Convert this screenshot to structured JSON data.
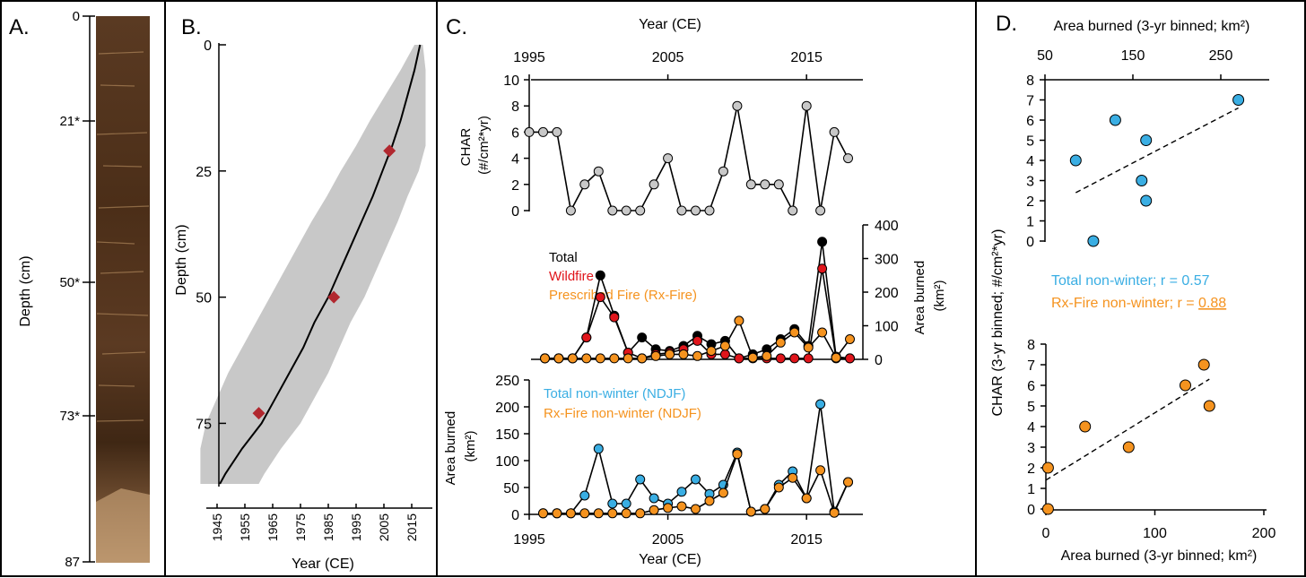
{
  "panels": {
    "a": {
      "label": "A.",
      "ylabel": "Depth (cm)",
      "ticks": [
        "0",
        "21*",
        "50*",
        "73*",
        "87"
      ]
    },
    "b": {
      "label": "B.",
      "ylabel": "Depth (cm)",
      "xlabel": "Year (CE)"
    },
    "c": {
      "label": "C.",
      "top_xlabel": "Year (CE)",
      "bottom_xlabel": "Year (CE)",
      "char_ylabel": [
        "CHAR",
        "(#/cm²*yr)"
      ],
      "area_right_ylabel": [
        "Area burned",
        "(km²)"
      ],
      "area_left_ylabel": [
        "Area burned",
        "(km²)"
      ],
      "legend_mid": [
        "Total",
        "Wildfire",
        "Prescribed Fire (Rx-Fire)"
      ],
      "legend_low": [
        "Total non-winter (NDJF)",
        "Rx-Fire non-winter (NDJF)"
      ]
    },
    "d": {
      "label": "D.",
      "top_xlabel": "Area burned (3-yr binned; km²)",
      "bottom_xlabel": "Area burned (3-yr binned; km²)",
      "ylabel": "CHAR (3-yr binned; #/cm²*yr)",
      "annot_total": "Total non-winter; r = 0.57",
      "annot_rx_prefix": "Rx-Fire non-winter; r = ",
      "annot_rx_value": "0.88"
    }
  },
  "colors": {
    "char": "#c8c8c8",
    "total": "#000000",
    "wildfire": "#e0151b",
    "rx": "#f5931f",
    "nonwinter": "#3aaee3",
    "uncertainty": "#c8c8c8",
    "dates": "#b1282f"
  },
  "chart_data": [
    {
      "id": "age-depth",
      "type": "line",
      "xlabel": "Year (CE)",
      "ylabel": "Depth (cm)",
      "xlim": [
        1940,
        2020
      ],
      "ylim": [
        0,
        87
      ],
      "x_ticks": [
        1945,
        1955,
        1965,
        1975,
        1985,
        1995,
        2005,
        2015
      ],
      "y_ticks": [
        0,
        25,
        50,
        75
      ],
      "y_reversed": true,
      "model": {
        "depth": [
          0,
          5,
          10,
          15,
          20,
          25,
          30,
          35,
          40,
          45,
          50,
          55,
          60,
          65,
          70,
          75,
          80,
          85,
          87
        ],
        "year": [
          2018,
          2016,
          2013.5,
          2011,
          2008,
          2004.5,
          2001,
          1997,
          1993,
          1989,
          1985,
          1980,
          1976,
          1971,
          1966,
          1961,
          1954,
          1948,
          1946
        ],
        "lower": [
          2016,
          2011,
          2005.5,
          2000,
          1995,
          1989.5,
          1984.5,
          1979,
          1974,
          1969,
          1964,
          1959,
          1954,
          1949,
          1945,
          1941,
          1939,
          1939,
          1939
        ],
        "upper": [
          2019,
          2020,
          2020,
          2020,
          2020,
          2017.5,
          2013.5,
          2010,
          2006,
          2002,
          1998,
          1993,
          1989,
          1985,
          1980,
          1975,
          1968,
          1962,
          1960
        ]
      },
      "dated_points": [
        {
          "depth": 21,
          "year": 2007
        },
        {
          "depth": 50,
          "year": 1987
        },
        {
          "depth": 73,
          "year": 1960
        }
      ]
    },
    {
      "id": "char-series",
      "type": "line",
      "ylabel": "CHAR (#/cm²*yr)",
      "xlim": [
        1995,
        2019
      ],
      "ylim": [
        0,
        10
      ],
      "x_ticks": [
        1995,
        2005,
        2015
      ],
      "y_ticks": [
        0,
        2,
        4,
        6,
        8,
        10
      ],
      "x": [
        1995,
        1996,
        1997,
        1998,
        1999,
        2000,
        2001,
        2002,
        2003,
        2004,
        2005,
        2006,
        2007,
        2008,
        2009,
        2010,
        2011,
        2012,
        2013,
        2014,
        2015,
        2016,
        2017,
        2018
      ],
      "values": [
        6,
        6,
        6,
        0,
        2,
        3,
        0,
        0,
        0,
        2,
        4,
        0,
        0,
        0,
        3,
        8,
        2,
        2,
        2,
        0,
        8,
        0,
        6,
        4
      ]
    },
    {
      "id": "area-burned-by-type",
      "type": "line",
      "ylabel": "Area burned (km²)",
      "ylim": [
        0,
        400
      ],
      "y_ticks": [
        0,
        100,
        200,
        300,
        400
      ],
      "x": [
        1996,
        1997,
        1998,
        1999,
        2000,
        2001,
        2002,
        2003,
        2004,
        2005,
        2006,
        2007,
        2008,
        2009,
        2010,
        2011,
        2012,
        2013,
        2014,
        2015,
        2016,
        2017,
        2018
      ],
      "series": [
        {
          "name": "Total",
          "values": [
            3,
            3,
            3,
            65,
            250,
            130,
            20,
            65,
            30,
            25,
            40,
            70,
            45,
            55,
            3,
            15,
            30,
            60,
            90,
            40,
            350,
            8,
            3
          ]
        },
        {
          "name": "Wildfire",
          "values": [
            3,
            3,
            3,
            65,
            185,
            125,
            20,
            3,
            15,
            20,
            30,
            55,
            15,
            15,
            3,
            3,
            3,
            3,
            3,
            3,
            270,
            3,
            3
          ]
        },
        {
          "name": "Prescribed Fire (Rx-Fire)",
          "values": [
            3,
            3,
            3,
            3,
            3,
            3,
            3,
            3,
            10,
            15,
            15,
            10,
            25,
            40,
            115,
            5,
            10,
            50,
            80,
            35,
            80,
            5,
            60
          ]
        }
      ]
    },
    {
      "id": "area-burned-non-winter",
      "type": "line",
      "ylabel": "Area burned (km²)",
      "xlabel": "Year (CE)",
      "xlim": [
        1995,
        2019
      ],
      "ylim": [
        0,
        250
      ],
      "x_ticks": [
        1995,
        2005,
        2015
      ],
      "y_ticks": [
        0,
        50,
        100,
        150,
        200,
        250
      ],
      "x": [
        1996,
        1997,
        1998,
        1999,
        2000,
        2001,
        2002,
        2003,
        2004,
        2005,
        2006,
        2007,
        2008,
        2009,
        2010,
        2011,
        2012,
        2013,
        2014,
        2015,
        2016,
        2017,
        2018
      ],
      "series": [
        {
          "name": "Total non-winter (NDJF)",
          "values": [
            2,
            2,
            2,
            35,
            122,
            20,
            20,
            65,
            30,
            20,
            42,
            65,
            38,
            55,
            115,
            5,
            10,
            55,
            80,
            30,
            205,
            5,
            60
          ]
        },
        {
          "name": "Rx-Fire non-winter (NDJF)",
          "values": [
            2,
            2,
            2,
            2,
            2,
            2,
            2,
            2,
            8,
            12,
            15,
            10,
            25,
            40,
            112,
            5,
            10,
            50,
            68,
            30,
            82,
            3,
            60
          ]
        }
      ]
    },
    {
      "id": "scatter-total",
      "type": "scatter",
      "xlabel": "Area burned (3-yr binned; km²)",
      "ylabel": "CHAR (3-yr binned; #/cm²*yr)",
      "xlim": [
        50,
        300
      ],
      "ylim": [
        0,
        8
      ],
      "x_ticks": [
        50,
        150,
        250
      ],
      "y_ticks": [
        0,
        1,
        2,
        3,
        4,
        5,
        6,
        7,
        8
      ],
      "x": [
        85,
        105,
        130,
        160,
        165,
        165,
        270
      ],
      "y": [
        4,
        0,
        6,
        3,
        2,
        5,
        7
      ],
      "trendline": {
        "x": [
          85,
          270
        ],
        "y": [
          2.4,
          6.6
        ]
      }
    },
    {
      "id": "scatter-rx",
      "type": "scatter",
      "xlabel": "Area burned (3-yr binned; km²)",
      "ylabel": "CHAR (3-yr binned; #/cm²*yr)",
      "xlim": [
        0,
        200
      ],
      "ylim": [
        0,
        8
      ],
      "x_ticks": [
        0,
        100,
        200
      ],
      "y_ticks": [
        0,
        1,
        2,
        3,
        4,
        5,
        6,
        7,
        8
      ],
      "x": [
        2,
        2,
        36,
        76,
        128,
        145,
        150
      ],
      "y": [
        2,
        0,
        4,
        3,
        6,
        7,
        5
      ],
      "trendline": {
        "x": [
          0,
          150
        ],
        "y": [
          1.4,
          6.3
        ]
      }
    }
  ]
}
